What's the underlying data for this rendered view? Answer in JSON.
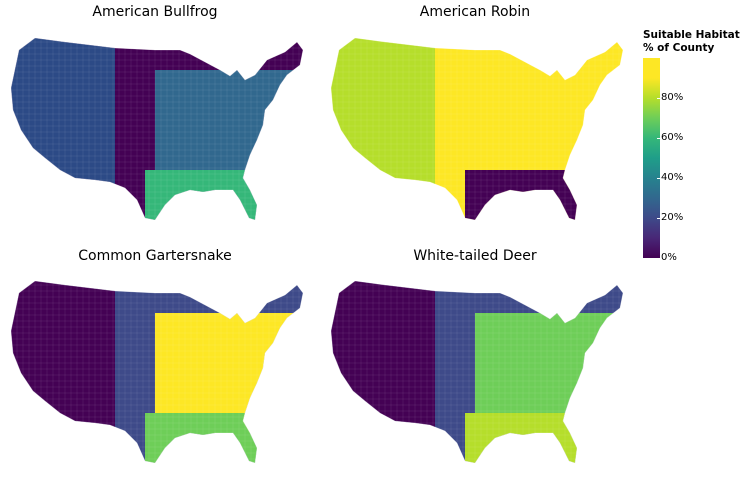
{
  "panels": [
    {
      "title": "American Bullfrog",
      "base": "#440154",
      "accent": "#2c4a86",
      "east": "#31688e",
      "south": "#35b779"
    },
    {
      "title": "American Robin",
      "base": "#fde725",
      "accent": "#b5de2b",
      "east": "#fde725",
      "south": "#440154"
    },
    {
      "title": "Common Gartersnake",
      "base": "#3e4a89",
      "accent": "#440154",
      "east": "#fde725",
      "south": "#6ece58"
    },
    {
      "title": "White-tailed Deer",
      "base": "#3e4a89",
      "accent": "#440154",
      "east": "#6ece58",
      "south": "#b5de2b"
    }
  ],
  "legend": {
    "title_line1": "Suitable Habitat",
    "title_line2": "% of County",
    "ticks": [
      {
        "label": "0%",
        "value": 0
      },
      {
        "label": "20%",
        "value": 20
      },
      {
        "label": "40%",
        "value": 40
      },
      {
        "label": "60%",
        "value": 60
      },
      {
        "label": "80%",
        "value": 80
      }
    ],
    "max": 100
  },
  "colors": {
    "low": "#440154",
    "mid": "#21918c",
    "high": "#fde725"
  }
}
